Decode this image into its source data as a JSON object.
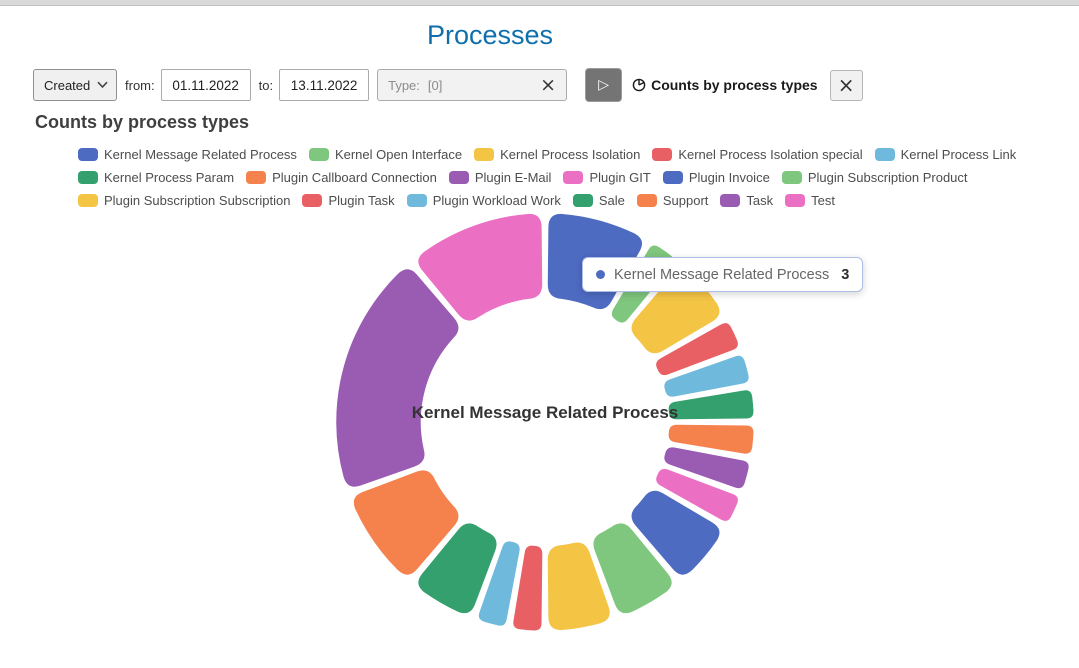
{
  "page": {
    "title": "Processes",
    "title_color": "#0F6FAD"
  },
  "icons": {
    "play": "▷",
    "clear": "×",
    "close": "×"
  },
  "filters": {
    "field_value": "Created",
    "from_label": "from:",
    "from_value": "01.11.2022",
    "to_label": "to:",
    "to_value": "13.11.2022",
    "type_label": "Type:",
    "type_value": "[0]",
    "chart_toggle_label": "Counts by process types"
  },
  "chart": {
    "heading": "Counts by process types",
    "center_label": "Kernel Message Related Process"
  },
  "tooltip": {
    "label": "Kernel Message Related Process",
    "value": "3",
    "color": "#4E6BC2"
  },
  "chart_data": {
    "type": "pie",
    "subtype": "donut",
    "title": "Counts by process types",
    "legend_position": "top",
    "center_label": "Kernel Message Related Process",
    "highlighted": "Kernel Message Related Process",
    "categories": [
      "Kernel Message Related Process",
      "Kernel Open Interface",
      "Kernel Process Isolation",
      "Kernel Process Isolation special",
      "Kernel Process Link",
      "Kernel Process Param",
      "Plugin Callboard Connection",
      "Plugin E-Mail",
      "Plugin GIT",
      "Plugin Invoice",
      "Plugin Subscription Product",
      "Plugin Subscription Subscription",
      "Plugin Task",
      "Plugin Workload Work",
      "Sale",
      "Support",
      "Task",
      "Test"
    ],
    "values": [
      3,
      1,
      2,
      1,
      1,
      1,
      1,
      1,
      1,
      2,
      2,
      2,
      1,
      1,
      2,
      3,
      7,
      4
    ],
    "colors": [
      "#4E6BC2",
      "#7FC67E",
      "#F4C445",
      "#E85F64",
      "#6FB9DC",
      "#34A06D",
      "#F5814D",
      "#9A5BB3",
      "#EB6FC3",
      "#4E6BC2",
      "#7FC67E",
      "#F4C445",
      "#E85F64",
      "#6FB9DC",
      "#34A06D",
      "#F5814D",
      "#9A5BB3",
      "#EB6FC3"
    ]
  }
}
